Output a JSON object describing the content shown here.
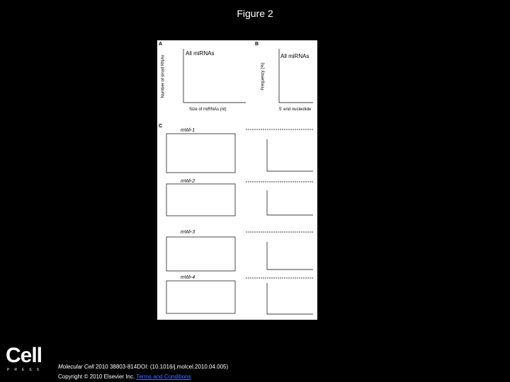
{
  "header": {
    "title": "Figure 2"
  },
  "figure": {
    "panels": [
      {
        "label": "A",
        "title": "All miRNAs",
        "x_label": "Size of miRNAs (nt)",
        "y_label": "Number of small RNAs"
      },
      {
        "label": "B",
        "title": "All miRNAs",
        "x_label": "5' end nucleotide",
        "y_label": "Frequency (%)"
      },
      {
        "label": "C",
        "rows": [
          "mWi-1",
          "mWi-2",
          "mWi-3",
          "mWi-4"
        ]
      }
    ]
  },
  "footer": {
    "logo": "Cell",
    "logo_sub": "PRESS",
    "journal": "Molecular Cell",
    "citation": "2010 38803-814DOI: (10.1016/j.molcel.2010.04.005)",
    "copyright": "Copyright © 2010 Elsevier Inc.",
    "terms": "Terms and Conditions"
  }
}
